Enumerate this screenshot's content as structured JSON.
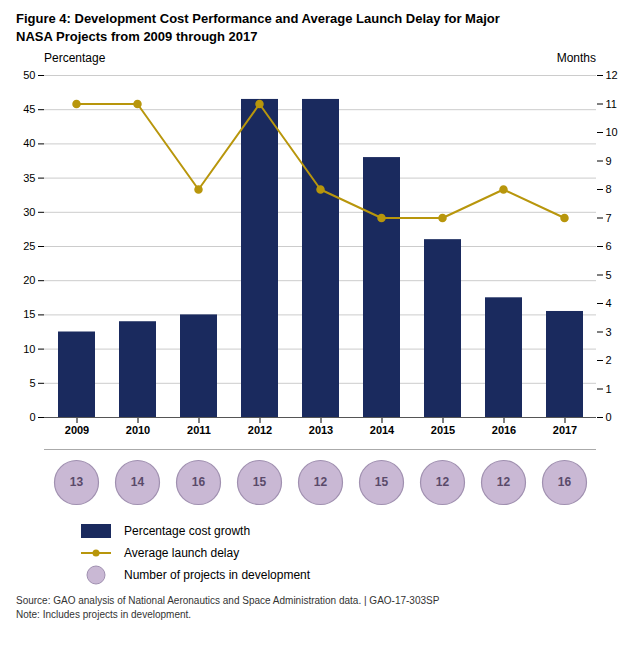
{
  "chart_data": {
    "type": "bar",
    "title": "Figure 4: Development Cost Performance and Average Launch Delay for Major\nNASA Projects from 2009 through 2017",
    "categories": [
      "2009",
      "2010",
      "2011",
      "2012",
      "2013",
      "2014",
      "2015",
      "2016",
      "2017"
    ],
    "series": [
      {
        "name": "Percentage cost growth",
        "type": "bar",
        "color": "#1a2a5e",
        "values": [
          12.5,
          14.0,
          15.0,
          46.5,
          46.5,
          38.0,
          26.0,
          17.5,
          15.5
        ]
      },
      {
        "name": "Average launch delay",
        "type": "line",
        "axis": "y2",
        "color": "#b8960c",
        "marker": "circle",
        "values": [
          11.0,
          11.0,
          8.0,
          11.0,
          8.0,
          7.0,
          7.0,
          8.0,
          7.0
        ]
      },
      {
        "name": "Number of projects in development",
        "type": "circles",
        "color": "#c9b8d4",
        "data_labels": true,
        "values": [
          13,
          14,
          16,
          15,
          12,
          15,
          12,
          12,
          16
        ]
      }
    ],
    "ylabel": "Percentage",
    "y2label": "Months",
    "ylim": [
      0,
      50
    ],
    "yticks": [
      0,
      5,
      10,
      15,
      20,
      25,
      30,
      35,
      40,
      45,
      50
    ],
    "y2lim": [
      0,
      12
    ],
    "y2ticks": [
      0,
      1,
      2,
      3,
      4,
      5,
      6,
      7,
      8,
      9,
      10,
      11,
      12
    ],
    "grid": true,
    "legend": "bottom",
    "annotations": [
      "Source: GAO analysis of National Aeronautics and Space Administration data.  |  GAO-17-303SP",
      "Note: Includes projects in development."
    ]
  }
}
